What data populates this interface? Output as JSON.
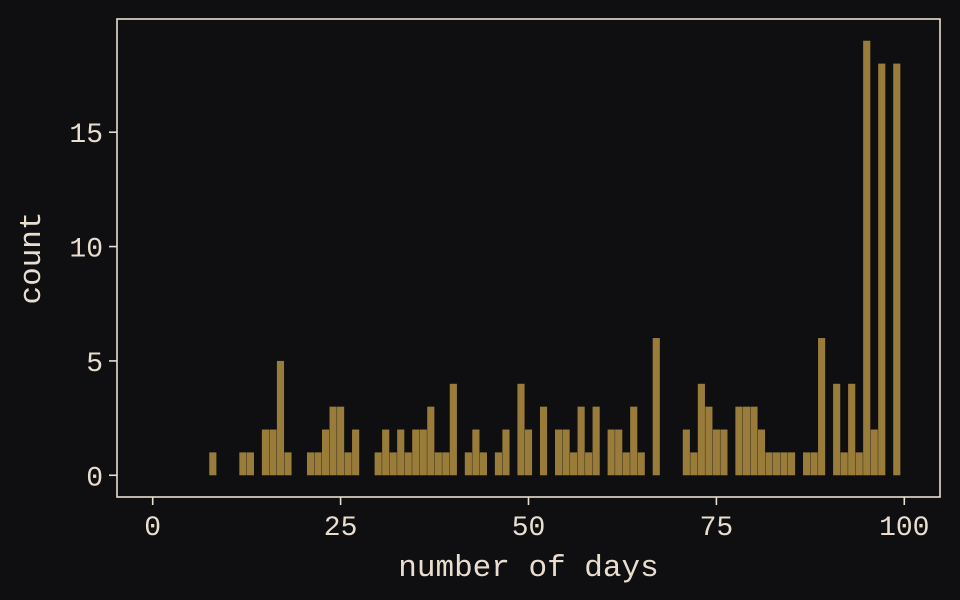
{
  "chart_data": {
    "type": "bar",
    "title": "",
    "xlabel": "number of days",
    "ylabel": "count",
    "xlim": [
      -4.75,
      104.75
    ],
    "ylim": [
      -0.95,
      19.95
    ],
    "xticks": [
      0,
      25,
      50,
      75,
      100
    ],
    "yticks": [
      0,
      5,
      10,
      15
    ],
    "grid": false,
    "colors": {
      "background": "#0f0f11",
      "bar": "#9a7c3a",
      "axis": "#e9ddd0",
      "text": "#e9ddd0"
    },
    "x": [
      8,
      12,
      13,
      15,
      16,
      17,
      18,
      21,
      22,
      23,
      24,
      25,
      26,
      27,
      30,
      31,
      32,
      33,
      34,
      35,
      36,
      37,
      38,
      39,
      40,
      42,
      43,
      44,
      46,
      47,
      49,
      50,
      52,
      54,
      55,
      56,
      57,
      58,
      59,
      61,
      62,
      63,
      64,
      65,
      67,
      71,
      72,
      73,
      74,
      75,
      76,
      78,
      79,
      80,
      81,
      82,
      83,
      84,
      85,
      87,
      88,
      89,
      91,
      92,
      93,
      94,
      95,
      96,
      97,
      99
    ],
    "values": [
      1,
      1,
      1,
      2,
      2,
      5,
      1,
      1,
      1,
      2,
      3,
      3,
      1,
      2,
      1,
      2,
      1,
      2,
      1,
      2,
      2,
      3,
      1,
      1,
      4,
      1,
      2,
      1,
      1,
      2,
      4,
      2,
      3,
      2,
      2,
      1,
      3,
      1,
      3,
      2,
      2,
      1,
      3,
      1,
      6,
      2,
      1,
      4,
      3,
      2,
      2,
      3,
      3,
      3,
      2,
      1,
      1,
      1,
      1,
      1,
      1,
      6,
      4,
      1,
      4,
      1,
      19,
      2,
      18,
      18
    ]
  }
}
